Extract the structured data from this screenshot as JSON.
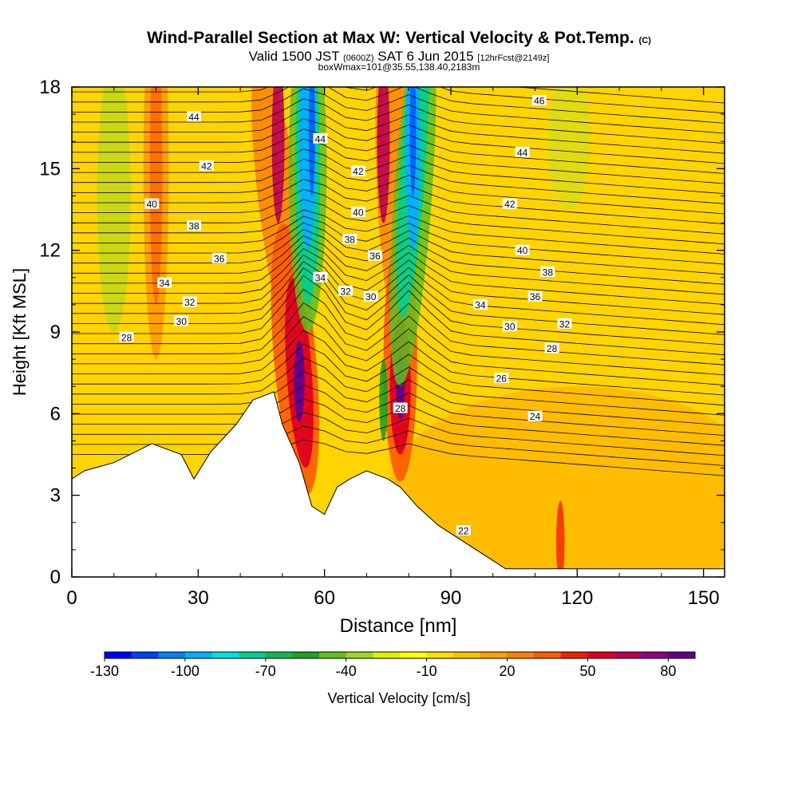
{
  "titles": {
    "main": "Wind-Parallel Section at Max W: Vertical Velocity & Pot.Temp.",
    "copyright": "(C)",
    "sub_a": "Valid 1500 JST",
    "sub_b": "(0600Z)",
    "sub_c": "SAT 6 Jun 2015",
    "sub_d": "[12hrFcst@2149z]",
    "sub_e": "boxWmax=101@35.55,138.40,2183m"
  },
  "chart_data": {
    "type": "heatmap",
    "title": "Wind-Parallel Section at Max W: Vertical Velocity & Pot.Temp.",
    "xlabel": "Distance [nm]",
    "ylabel": "Height [Kft MSL]",
    "xlim": [
      0,
      155
    ],
    "ylim": [
      0,
      18
    ],
    "xticks": [
      0,
      30,
      60,
      90,
      120,
      150
    ],
    "yticks": [
      0,
      3,
      6,
      9,
      12,
      15,
      18
    ],
    "colorbar": {
      "label": "Vertical Velocity [cm/s]",
      "tick_labels": [
        -130,
        -100,
        -70,
        -40,
        -10,
        20,
        50,
        80
      ],
      "min": -130,
      "max": 90,
      "colors": [
        "#0000ff",
        "#0040ff",
        "#0080ff",
        "#00b0ff",
        "#00e0e0",
        "#00d090",
        "#10b850",
        "#20a020",
        "#60c020",
        "#a0d820",
        "#e0f000",
        "#ffff00",
        "#ffe000",
        "#ffc000",
        "#ffa000",
        "#ff8000",
        "#ff5a00",
        "#f02000",
        "#e00020",
        "#c00050",
        "#900080",
        "#600090"
      ]
    },
    "terrain_kft": [
      [
        0,
        3.6
      ],
      [
        3,
        3.9
      ],
      [
        10,
        4.2
      ],
      [
        19,
        4.9
      ],
      [
        26,
        4.5
      ],
      [
        29,
        3.6
      ],
      [
        33,
        4.6
      ],
      [
        39,
        5.6
      ],
      [
        43,
        6.5
      ],
      [
        48,
        6.8
      ],
      [
        50,
        5.6
      ],
      [
        54,
        4.2
      ],
      [
        57,
        2.6
      ],
      [
        60,
        2.3
      ],
      [
        63,
        3.3
      ],
      [
        66,
        3.6
      ],
      [
        70,
        3.9
      ],
      [
        75,
        3.6
      ],
      [
        78,
        3.3
      ],
      [
        82,
        2.6
      ],
      [
        87,
        1.9
      ],
      [
        93,
        1.3
      ],
      [
        99,
        0.7
      ],
      [
        103,
        0.3
      ],
      [
        155,
        0.3
      ]
    ],
    "updrafts": [
      {
        "x_nm": 55,
        "peak_cm_s": 101
      },
      {
        "x_nm": 78,
        "peak_cm_s": 85
      }
    ],
    "downdrafts": [
      {
        "x_nm": 56,
        "z_kft": 15,
        "min_cm_s": -120
      },
      {
        "x_nm": 81,
        "z_kft": 15,
        "min_cm_s": -125
      }
    ],
    "theta_contour_labels": [
      {
        "value": "44",
        "x_nm": 29,
        "z_kft": 16.9
      },
      {
        "value": "42",
        "x_nm": 32,
        "z_kft": 15.1
      },
      {
        "value": "40",
        "x_nm": 19,
        "z_kft": 13.7
      },
      {
        "value": "38",
        "x_nm": 29,
        "z_kft": 12.9
      },
      {
        "value": "36",
        "x_nm": 35,
        "z_kft": 11.7
      },
      {
        "value": "34",
        "x_nm": 22,
        "z_kft": 10.8
      },
      {
        "value": "32",
        "x_nm": 28,
        "z_kft": 10.1
      },
      {
        "value": "30",
        "x_nm": 26,
        "z_kft": 9.4
      },
      {
        "value": "28",
        "x_nm": 13,
        "z_kft": 8.8
      },
      {
        "value": "44",
        "x_nm": 59,
        "z_kft": 16.1
      },
      {
        "value": "42",
        "x_nm": 68,
        "z_kft": 14.9
      },
      {
        "value": "40",
        "x_nm": 68,
        "z_kft": 13.4
      },
      {
        "value": "38",
        "x_nm": 66,
        "z_kft": 12.4
      },
      {
        "value": "36",
        "x_nm": 72,
        "z_kft": 11.8
      },
      {
        "value": "34",
        "x_nm": 59,
        "z_kft": 11.0
      },
      {
        "value": "32",
        "x_nm": 65,
        "z_kft": 10.5
      },
      {
        "value": "30",
        "x_nm": 71,
        "z_kft": 10.3
      },
      {
        "value": "46",
        "x_nm": 111,
        "z_kft": 17.5
      },
      {
        "value": "44",
        "x_nm": 107,
        "z_kft": 15.6
      },
      {
        "value": "42",
        "x_nm": 104,
        "z_kft": 13.7
      },
      {
        "value": "40",
        "x_nm": 107,
        "z_kft": 12.0
      },
      {
        "value": "38",
        "x_nm": 113,
        "z_kft": 11.2
      },
      {
        "value": "36",
        "x_nm": 110,
        "z_kft": 10.3
      },
      {
        "value": "34",
        "x_nm": 97,
        "z_kft": 10.0
      },
      {
        "value": "32",
        "x_nm": 117,
        "z_kft": 9.3
      },
      {
        "value": "30",
        "x_nm": 104,
        "z_kft": 9.2
      },
      {
        "value": "28",
        "x_nm": 114,
        "z_kft": 8.4
      },
      {
        "value": "26",
        "x_nm": 102,
        "z_kft": 7.3
      },
      {
        "value": "24",
        "x_nm": 110,
        "z_kft": 5.9
      },
      {
        "value": "28",
        "x_nm": 78,
        "z_kft": 6.2
      },
      {
        "value": "22",
        "x_nm": 93,
        "z_kft": 1.7
      }
    ]
  }
}
